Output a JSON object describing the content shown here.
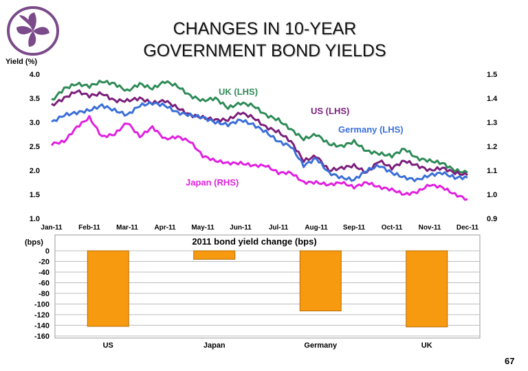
{
  "slide": {
    "title_line1": "CHANGES IN 10-YEAR",
    "title_line2": "GOVERNMENT BOND YIELDS",
    "page_number": "67"
  },
  "chart_data": [
    {
      "type": "line",
      "title": "",
      "ylabel_left": "Yield (%)",
      "ylim_left": [
        1.0,
        4.0
      ],
      "ylim_right": [
        0.9,
        1.5
      ],
      "yticks_left": [
        "4.0",
        "3.5",
        "3.0",
        "2.5",
        "2.0",
        "1.5",
        "1.0"
      ],
      "yticks_right": [
        "1.5",
        "1.4",
        "1.3",
        "1.2",
        "1.1",
        "1.0",
        "0.9"
      ],
      "x_labels": [
        "Jan-11",
        "Feb-11",
        "Mar-11",
        "Apr-11",
        "May-11",
        "Jun-11",
        "Jul-11",
        "Aug-11",
        "Sep-11",
        "Oct-11",
        "Nov-11",
        "Dec-11"
      ],
      "series": [
        {
          "name": "UK (LHS)",
          "axis": "left",
          "color": "#2e8b57",
          "values": [
            3.45,
            3.7,
            3.8,
            3.75,
            3.85,
            3.8,
            3.65,
            3.8,
            3.7,
            3.85,
            3.75,
            3.55,
            3.45,
            3.5,
            3.3,
            3.4,
            3.35,
            3.15,
            3.05,
            2.85,
            2.65,
            2.75,
            2.55,
            2.5,
            2.6,
            2.4,
            2.35,
            2.3,
            2.45,
            2.25,
            2.2,
            2.15,
            2.0,
            1.95
          ]
        },
        {
          "name": "US (LHS)",
          "axis": "left",
          "color": "#7b1f7b",
          "values": [
            3.35,
            3.5,
            3.65,
            3.55,
            3.6,
            3.45,
            3.45,
            3.5,
            3.4,
            3.45,
            3.3,
            3.15,
            3.1,
            3.05,
            3.05,
            3.2,
            3.1,
            2.9,
            2.8,
            2.6,
            2.2,
            2.3,
            2.0,
            2.05,
            2.1,
            1.95,
            2.2,
            2.05,
            2.2,
            2.1,
            2.0,
            2.05,
            1.95,
            1.9
          ]
        },
        {
          "name": "Germany (LHS)",
          "axis": "left",
          "color": "#3a6fd8",
          "values": [
            3.0,
            3.15,
            3.2,
            3.25,
            3.35,
            3.25,
            3.15,
            3.35,
            3.4,
            3.35,
            3.2,
            3.15,
            3.1,
            3.0,
            2.95,
            3.05,
            2.95,
            2.8,
            2.6,
            2.5,
            2.1,
            2.25,
            1.95,
            1.85,
            1.8,
            2.0,
            2.1,
            1.95,
            1.85,
            1.8,
            1.9,
            1.95,
            1.85,
            1.85
          ]
        },
        {
          "name": "Japan (RHS)",
          "axis": "right",
          "color": "#e020e0",
          "values": [
            1.21,
            1.22,
            1.28,
            1.32,
            1.24,
            1.25,
            1.3,
            1.24,
            1.28,
            1.23,
            1.24,
            1.22,
            1.16,
            1.14,
            1.13,
            1.13,
            1.12,
            1.12,
            1.09,
            1.09,
            1.05,
            1.05,
            1.04,
            1.05,
            1.03,
            1.05,
            1.03,
            1.02,
            1.0,
            1.01,
            1.04,
            1.03,
            1.0,
            0.98
          ]
        }
      ],
      "legend_placement": "inline labels"
    },
    {
      "type": "bar",
      "title": "2011 bond yield change (bps)",
      "ylabel": "(bps)",
      "ylim": [
        -160,
        0
      ],
      "yticks": [
        "0",
        "-20",
        "-40",
        "-60",
        "-80",
        "-100",
        "-120",
        "-140",
        "-160"
      ],
      "categories": [
        "US",
        "Japan",
        "Germany",
        "UK"
      ],
      "values": [
        -142,
        -16,
        -113,
        -143
      ],
      "color": "#f79a10",
      "grid": true
    }
  ]
}
